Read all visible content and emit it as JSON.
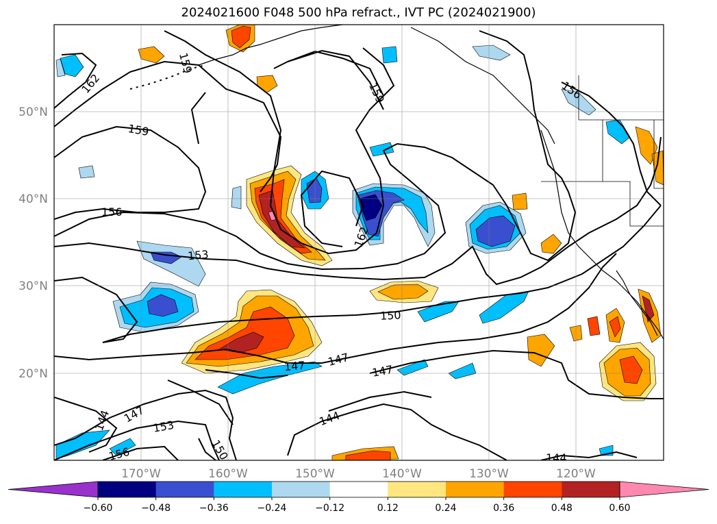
{
  "title": "2024021600 F048 500 hPa refract., IVT PC (2024021900)",
  "axes": {
    "lat_labels": [
      "50°N",
      "40°N",
      "30°N",
      "20°N"
    ],
    "lon_labels": [
      "170°W",
      "160°W",
      "150°W",
      "140°W",
      "130°W",
      "120°W"
    ]
  },
  "colorbar": {
    "ticks": [
      "−0.60",
      "−0.48",
      "−0.36",
      "−0.24",
      "−0.12",
      "0.12",
      "0.24",
      "0.36",
      "0.48",
      "0.60"
    ],
    "colors": [
      "#9932cc",
      "#000080",
      "#3a4fcf",
      "#00bfff",
      "#add8f0",
      "#ffffff",
      "#ffe680",
      "#ffa500",
      "#ff4500",
      "#b22222",
      "#ff88b0"
    ]
  },
  "contour_labels": [
    "162",
    "159",
    "159",
    "159",
    "156",
    "156",
    "153",
    "162",
    "150",
    "147",
    "147",
    "147",
    "144",
    "147",
    "153",
    "144",
    "156",
    "150",
    "144"
  ],
  "chart_data": {
    "type": "heatmap",
    "title": "2024021600 F048 500 hPa refract., IVT PC (2024021900)",
    "xlabel": "",
    "ylabel": "",
    "x_ticks": [
      "170°W",
      "160°W",
      "150°W",
      "140°W",
      "130°W",
      "120°W"
    ],
    "y_ticks": [
      "50°N",
      "40°N",
      "30°N",
      "20°N"
    ],
    "contour_levels": [
      144,
      147,
      150,
      153,
      156,
      159,
      162
    ],
    "color_levels": [
      -0.6,
      -0.48,
      -0.36,
      -0.24,
      -0.12,
      0.12,
      0.24,
      0.36,
      0.48,
      0.6
    ],
    "grid": true
  }
}
